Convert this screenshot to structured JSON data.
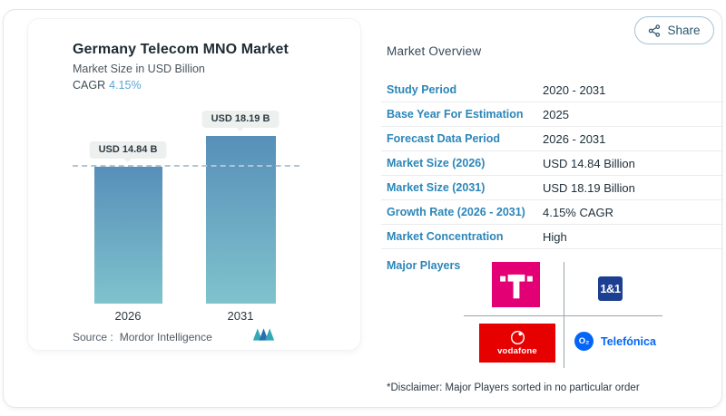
{
  "chart_card": {
    "title": "Germany Telecom MNO Market",
    "subtitle": "Market Size in USD Billion",
    "cagr_label": "CAGR",
    "cagr_value": "4.15%",
    "source_label": "Source :",
    "source_name": "Mordor Intelligence"
  },
  "chart_data": {
    "type": "bar",
    "categories": [
      "2026",
      "2031"
    ],
    "values": [
      14.84,
      18.19
    ],
    "bar_labels": [
      "USD 14.84 B",
      "USD 18.19 B"
    ],
    "title": "Germany Telecom MNO Market",
    "ylabel": "Market Size in USD Billion",
    "ylim": [
      0,
      20
    ],
    "grid": "off",
    "legend": "none",
    "annotations": {
      "dashed_reference_line_at": 14.84,
      "cagr": "4.15%"
    },
    "bar_gradient": [
      "#578fb9",
      "#80c3cd"
    ]
  },
  "share_button": {
    "label": "Share"
  },
  "overview": {
    "heading": "Market Overview",
    "rows": [
      {
        "label": "Study Period",
        "value": "2020 - 2031"
      },
      {
        "label": "Base Year For Estimation",
        "value": "2025"
      },
      {
        "label": "Forecast Data Period",
        "value": "2026 - 2031"
      },
      {
        "label": "Market Size (2026)",
        "value": "USD 14.84 Billion"
      },
      {
        "label": "Market Size (2031)",
        "value": "USD 18.19 Billion"
      },
      {
        "label": "Growth Rate (2026 - 2031)",
        "value": "4.15% CAGR"
      },
      {
        "label": "Market Concentration",
        "value": "High"
      }
    ],
    "major_players_label": "Major Players",
    "players": [
      {
        "name": "Deutsche Telekom",
        "color": "#e20074"
      },
      {
        "name": "1&1",
        "logo_text": "1&1",
        "color": "#1d3f92"
      },
      {
        "name": "Vodafone",
        "logo_text": "vodafone",
        "color": "#e60000"
      },
      {
        "name": "Telefónica",
        "logo_text": "Telefónica",
        "o2_text": "O₂",
        "color": "#0466f6"
      }
    ],
    "disclaimer": "*Disclaimer: Major Players sorted in no particular order"
  },
  "icons": {
    "share": "share-nodes-icon",
    "source_logo": "mordor-intelligence-logo",
    "telekom_mark": "telekom-t-icon",
    "vodafone_mark": "vodafone-speechmark-icon"
  },
  "colors": {
    "label_blue": "#2b86b9",
    "value_dark": "#20303b",
    "cagr_blue": "#58a6d6",
    "divider": "#e9ebee",
    "telekom_magenta": "#e20074",
    "oneandone_navy": "#1d3f92",
    "vodafone_red": "#e60000",
    "telefonica_blue": "#0466f6"
  }
}
